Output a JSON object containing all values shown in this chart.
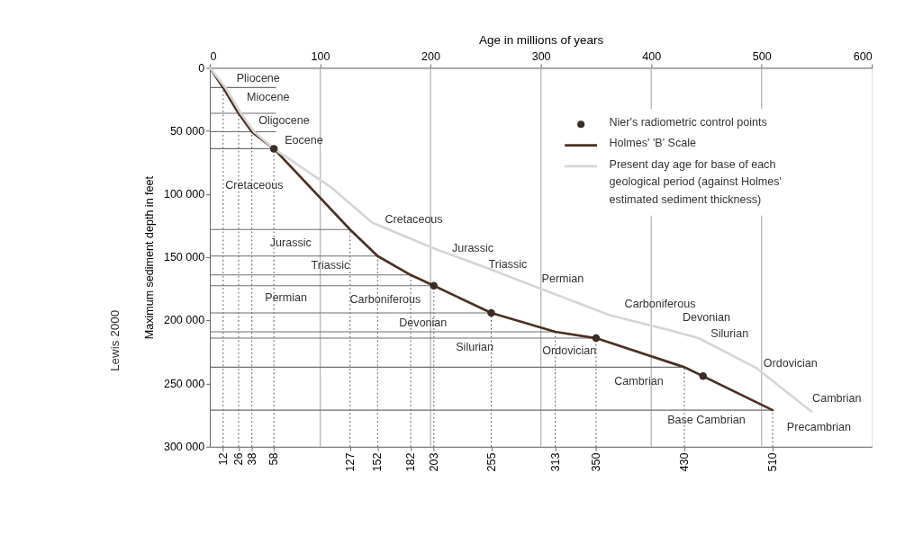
{
  "chart_data": {
    "type": "line",
    "xlabel": null,
    "x2label": "Age in millions of years",
    "ylabel": "Maximum sediment depth in feet",
    "xlim": [
      0,
      600
    ],
    "xticks": [
      12,
      26,
      38,
      58,
      127,
      152,
      182,
      203,
      255,
      313,
      350,
      430,
      510
    ],
    "x2lim": [
      0,
      600
    ],
    "x2ticks": [
      0,
      100,
      200,
      300,
      400,
      500,
      600
    ],
    "ylim": [
      300000,
      0
    ],
    "yticks": [
      0,
      {
        "value": 50000,
        "label": "50 000"
      },
      {
        "value": 100000,
        "label": "100 000"
      },
      {
        "value": 150000,
        "label": "150 000"
      },
      {
        "value": 200000,
        "label": "200 000"
      },
      {
        "value": 250000,
        "label": "250 000"
      },
      {
        "value": 300000,
        "label": "300 000"
      }
    ],
    "legend": "top right",
    "series": [
      {
        "name": "Nier's radiometric control points",
        "type": "scatter",
        "marker": "circle",
        "color": "#3b2c27",
        "x": [
          58,
          203,
          255,
          350,
          447
        ],
        "values": [
          64000,
          172500,
          194000,
          214000,
          244000
        ]
      },
      {
        "name": "Holmes' 'B' Scale",
        "marker": "none",
        "color": "#4b3022",
        "x": [
          0,
          12,
          26,
          38,
          58,
          127,
          152,
          182,
          203,
          255,
          313,
          350,
          430,
          510
        ],
        "values": [
          0,
          15600,
          36000,
          50600,
          64000,
          128000,
          149000,
          164000,
          172500,
          194000,
          209000,
          214000,
          237000,
          271000
        ]
      },
      {
        "name": "Present day age for base of each geological period (against Holmes' estimated sediment thickness)",
        "marker": "none",
        "color": "#d6d6d6",
        "x": [
          0,
          14,
          28,
          40,
          58,
          109,
          147,
          206,
          250,
          291,
          363,
          418,
          443,
          495,
          545
        ],
        "values": [
          0,
          15600,
          36000,
          50600,
          64000,
          94000,
          122500,
          144000,
          158000,
          172000,
          196000,
          208000,
          214000,
          237500,
          272000
        ]
      }
    ],
    "ref_lines": [
      {
        "axis": "x",
        "value": 100,
        "color": "#b8b8b8"
      },
      {
        "axis": "x",
        "value": 200,
        "color": "#b8b8b8"
      },
      {
        "axis": "x",
        "value": 300,
        "color": "#b8b8b8"
      },
      {
        "axis": "x",
        "value": 400,
        "color": "#b8b8b8"
      },
      {
        "axis": "x",
        "value": 500,
        "color": "#b8b8b8"
      },
      {
        "axis": "x",
        "value": 12,
        "color": "#666666",
        "line_style": "dotted"
      },
      {
        "axis": "x",
        "value": 26,
        "color": "#666666",
        "line_style": "dotted"
      },
      {
        "axis": "x",
        "value": 38,
        "color": "#666666",
        "line_style": "dotted"
      },
      {
        "axis": "x",
        "value": 58,
        "color": "#666666",
        "line_style": "dotted"
      },
      {
        "axis": "x",
        "value": 127,
        "color": "#666666",
        "line_style": "dotted"
      },
      {
        "axis": "x",
        "value": 152,
        "color": "#666666",
        "line_style": "dotted"
      },
      {
        "axis": "x",
        "value": 182,
        "color": "#666666",
        "line_style": "dotted"
      },
      {
        "axis": "x",
        "value": 203,
        "color": "#666666",
        "line_style": "dotted"
      },
      {
        "axis": "x",
        "value": 255,
        "color": "#666666",
        "line_style": "dotted"
      },
      {
        "axis": "x",
        "value": 313,
        "color": "#666666",
        "line_style": "dotted"
      },
      {
        "axis": "x",
        "value": 350,
        "color": "#666666",
        "line_style": "dotted"
      },
      {
        "axis": "x",
        "value": 430,
        "color": "#666666",
        "line_style": "dotted"
      },
      {
        "axis": "x",
        "value": 510,
        "color": "#666666",
        "line_style": "dotted"
      },
      {
        "axis": "y",
        "value": 15600,
        "color": "#6e6e6e"
      },
      {
        "axis": "y",
        "value": 36000,
        "color": "#6e6e6e"
      },
      {
        "axis": "y",
        "value": 50600,
        "color": "#6e6e6e"
      },
      {
        "axis": "y",
        "value": 64000,
        "color": "#6e6e6e"
      },
      {
        "axis": "y",
        "value": 128000,
        "color": "#6e6e6e"
      },
      {
        "axis": "y",
        "value": 149000,
        "color": "#6e6e6e"
      },
      {
        "axis": "y",
        "value": 164000,
        "color": "#6e6e6e"
      },
      {
        "axis": "y",
        "value": 172500,
        "color": "#6e6e6e"
      },
      {
        "axis": "y",
        "value": 194000,
        "color": "#6e6e6e"
      },
      {
        "axis": "y",
        "value": 209000,
        "color": "#6e6e6e"
      },
      {
        "axis": "y",
        "value": 214000,
        "color": "#6e6e6e"
      },
      {
        "axis": "y",
        "value": 237000,
        "color": "#6e6e6e"
      },
      {
        "axis": "y",
        "value": 271000,
        "color": "#6e6e6e"
      }
    ],
    "annotations": [
      "Pliocene",
      "Miocene",
      "Oligocene",
      "Eocene",
      "Cretaceous",
      "Jurassic",
      "Triassic",
      "Permian",
      "Carboniferous",
      "Devonian",
      "Silurian",
      "Ordovician",
      "Cambrian",
      "Base Cambrian",
      "Precambrian",
      "Cretaceous",
      "Jurassic",
      "Triassic",
      "Permian",
      "Carboniferous",
      "Devonian",
      "Silurian",
      "Ordovician",
      "Cambrian",
      "Lewis 2000"
    ]
  }
}
